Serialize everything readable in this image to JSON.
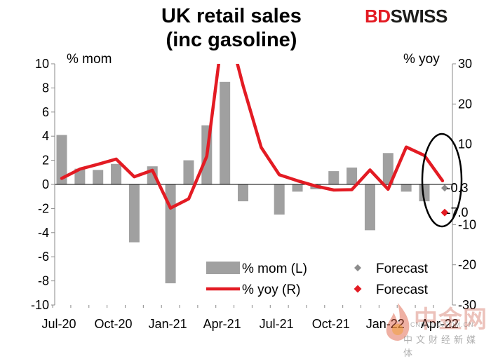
{
  "header": {
    "title_line1": "UK retail sales",
    "title_line2": "(inc gasoline)",
    "logo_part1": "BD",
    "logo_part2": "SWISS"
  },
  "watermark": {
    "main": "中金网",
    "sub": "CNGOLD.COM.CN",
    "cn": "中文财经新媒体"
  },
  "colors": {
    "bar": "#a0a0a0",
    "line": "#e31b23",
    "forecast_mom": "#8c8c8c",
    "forecast_yoy": "#e31b23",
    "ellipse": "#000000"
  },
  "chart_data": {
    "type": "bar+line",
    "left_axis_unit": "% mom",
    "right_axis_unit": "% yoy",
    "left_ticks": [
      10,
      8,
      6,
      4,
      2,
      0,
      -2,
      -4,
      -6,
      -8,
      -10
    ],
    "right_ticks": [
      30,
      20,
      10,
      0,
      -10,
      -20,
      -30
    ],
    "right_tick_labels": [
      "30",
      "20",
      "10",
      "",
      "-10",
      "-20",
      "-30"
    ],
    "ylim_left": [
      -10,
      10
    ],
    "ylim_right": [
      -30,
      30
    ],
    "x_tick_labels": [
      "Jul-20",
      "Oct-20",
      "Jan-21",
      "Apr-21",
      "Jul-21",
      "Oct-21",
      "Jan-22",
      "Apr-22"
    ],
    "x_tick_indices": [
      0,
      3,
      6,
      9,
      12,
      15,
      18,
      21
    ],
    "months": [
      "Jul-20",
      "Aug-20",
      "Sep-20",
      "Oct-20",
      "Nov-20",
      "Dec-20",
      "Jan-21",
      "Feb-21",
      "Mar-21",
      "Apr-21",
      "May-21",
      "Jun-21",
      "Jul-21",
      "Aug-21",
      "Sep-21",
      "Oct-21",
      "Nov-21",
      "Dec-21",
      "Jan-22",
      "Feb-22",
      "Mar-22",
      "Apr-22"
    ],
    "series": [
      {
        "name": "% mom (L)",
        "type": "bar",
        "axis": "left",
        "values": [
          4.1,
          1.3,
          1.2,
          1.7,
          -4.8,
          1.5,
          -8.2,
          2.0,
          4.9,
          8.5,
          -1.4,
          null,
          -2.5,
          -0.6,
          -0.4,
          1.1,
          1.4,
          -3.8,
          2.6,
          -0.6,
          -1.4,
          null
        ]
      },
      {
        "name": "% yoy (R)",
        "type": "line",
        "axis": "right",
        "values": [
          1.5,
          3.8,
          5.0,
          6.3,
          1.9,
          3.5,
          -5.9,
          -3.6,
          7.0,
          42.0,
          24.6,
          9.2,
          2.4,
          0.9,
          -0.4,
          -1.4,
          -1.3,
          3.6,
          -1.2,
          9.3,
          7.2,
          0.9
        ]
      }
    ],
    "forecast": [
      {
        "name": "Forecast",
        "axis": "left",
        "month_index": 21,
        "value": -0.3,
        "label": "-0.3"
      },
      {
        "name": "Forecast",
        "axis": "right",
        "month_index": 21,
        "value": -7.0,
        "label": "-7.0"
      }
    ],
    "legend": [
      {
        "label": "% mom (L)",
        "kind": "bar"
      },
      {
        "label": "Forecast",
        "kind": "diamond-gray"
      },
      {
        "label": "% yoy (R)",
        "kind": "line"
      },
      {
        "label": "Forecast",
        "kind": "diamond-red"
      }
    ],
    "legend_position": "bottom-right",
    "grid": false
  }
}
